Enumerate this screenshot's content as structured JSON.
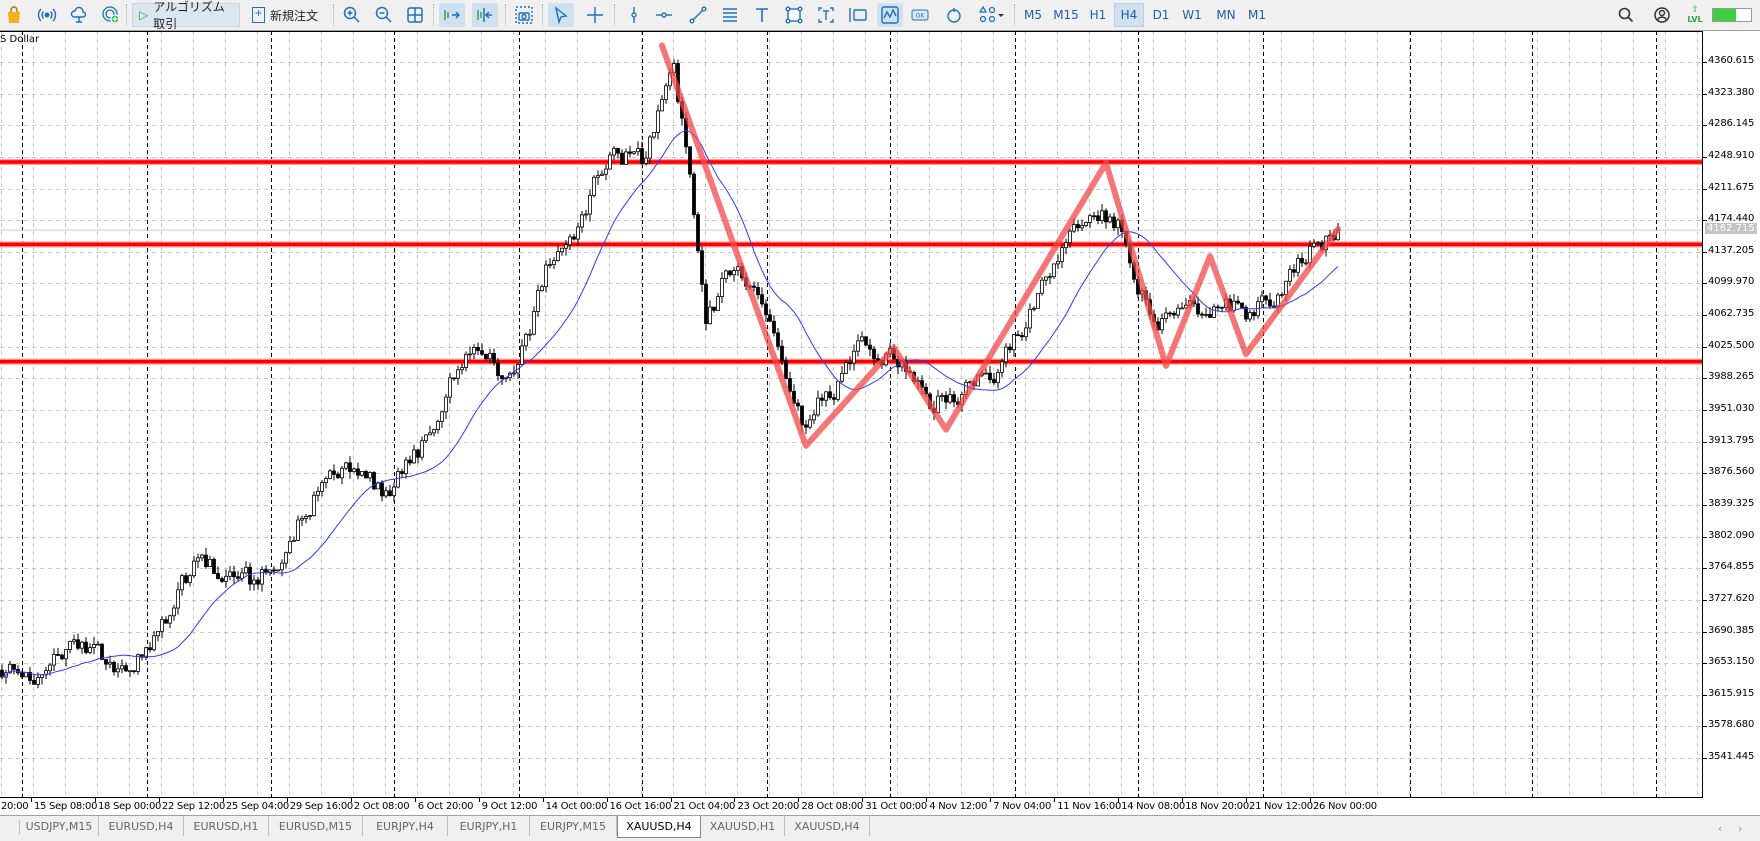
{
  "toolbar": {
    "algo_trading": "アルゴリズム取引",
    "new_order": "新規注文",
    "timeframes": [
      "M5",
      "M15",
      "H1",
      "H4",
      "D1",
      "W1",
      "MN",
      "M1"
    ],
    "active_timeframe": "H4",
    "lvl_label": "LVL",
    "signal_level": 0.6,
    "accent_color": "#1f6fc0"
  },
  "chart": {
    "symbol_label": "S Dollar",
    "current_price": "4162.715",
    "price_ticks": [
      "4360.615",
      "4323.380",
      "4286.145",
      "4248.910",
      "4211.675",
      "4174.440",
      "4137.205",
      "4099.970",
      "4062.735",
      "4025.500",
      "3988.265",
      "3951.030",
      "3913.795",
      "3876.560",
      "3839.325",
      "3802.090",
      "3764.855",
      "3727.620",
      "3690.385",
      "3653.150",
      "3615.915",
      "3578.680",
      "3541.445"
    ],
    "time_labels": [
      "20:00",
      "15 Sep 08:00",
      "18 Sep 00:00",
      "22 Sep 12:00",
      "25 Sep 04:00",
      "29 Sep 16:00",
      "2 Oct 08:00",
      "6 Oct 20:00",
      "9 Oct 12:00",
      "14 Oct 00:00",
      "16 Oct 16:00",
      "21 Oct 04:00",
      "23 Oct 20:00",
      "28 Oct 08:00",
      "31 Oct 00:00",
      "4 Nov 12:00",
      "7 Nov 04:00",
      "11 Nov 16:00",
      "14 Nov 08:00",
      "18 Nov 20:00",
      "21 Nov 12:00",
      "26 Nov 00:00"
    ]
  },
  "chart_data": {
    "type": "candlestick",
    "symbol": "XAUUSD",
    "timeframe": "H4",
    "ylim": [
      3520,
      4385
    ],
    "close_path_every_8_bars": [
      3645,
      3638,
      3675,
      3665,
      3640,
      3700,
      3770,
      3760,
      3745,
      3800,
      3870,
      3875,
      3850,
      3900,
      3990,
      4030,
      3980,
      4110,
      4170,
      4260,
      4240,
      4370,
      4060,
      4130,
      4050,
      3930,
      3980,
      4030,
      4010,
      3960,
      3975,
      4000,
      4050,
      4130,
      4190,
      4160,
      4050,
      4070,
      4080,
      4060,
      4100,
      4150,
      4162.715
    ],
    "last_close": 4162.715,
    "moving_average": {
      "type": "SMA",
      "period": 20,
      "color": "#2a3cff"
    },
    "horizontal_lines": [
      4243,
      4146,
      4008
    ],
    "horizontal_line_color": "#ff0000",
    "zigzag": [
      {
        "bar": 165,
        "price": 4380
      },
      {
        "bar": 201,
        "price": 3909
      },
      {
        "bar": 223,
        "price": 4024
      },
      {
        "bar": 236,
        "price": 3928
      },
      {
        "bar": 276,
        "price": 4242
      },
      {
        "bar": 291,
        "price": 4003
      },
      {
        "bar": 302,
        "price": 4132
      },
      {
        "bar": 311,
        "price": 4017
      },
      {
        "bar": 334,
        "price": 4164
      }
    ],
    "zigzag_color": "#f04848",
    "grid": true
  },
  "tabs": [
    "USDJPY,M15",
    "EURUSD,H4",
    "EURUSD,H1",
    "EURUSD,M15",
    "EURJPY,H4",
    "EURJPY,H1",
    "EURJPY,M15",
    "XAUUSD,H4",
    "XAUUSD,H1",
    "XAUUSD,H4"
  ],
  "active_tab": 7,
  "scroll": {
    "left": "‹",
    "right": "›"
  }
}
